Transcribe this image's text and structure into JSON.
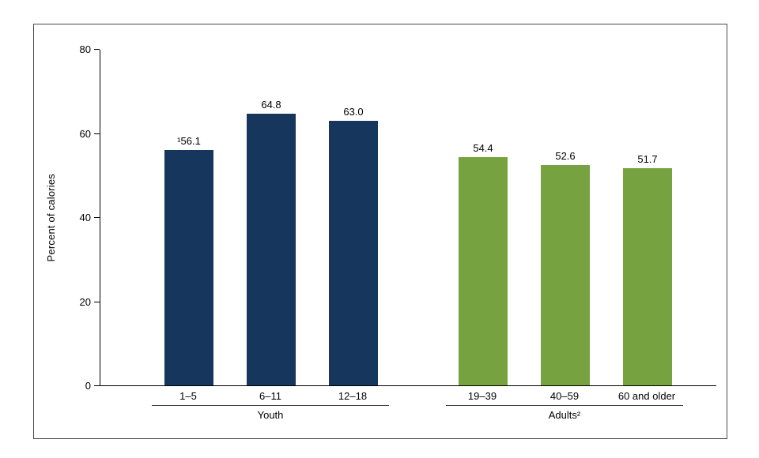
{
  "chart_data": {
    "type": "bar",
    "title": "",
    "xlabel": "",
    "ylabel": "Percent of calories",
    "ylim": [
      0,
      80
    ],
    "yticks": [
      0,
      20,
      40,
      60,
      80
    ],
    "grid": false,
    "legend": false,
    "groups": [
      {
        "label": "Youth",
        "color": "#17365d",
        "bars": [
          {
            "category": "1–5",
            "value": 56.1,
            "value_label": "¹56.1"
          },
          {
            "category": "6–11",
            "value": 64.8,
            "value_label": "64.8"
          },
          {
            "category": "12–18",
            "value": 63.0,
            "value_label": "63.0"
          }
        ]
      },
      {
        "label": "Adults²",
        "color": "#76a23f",
        "bars": [
          {
            "category": "19–39",
            "value": 54.4,
            "value_label": "54.4"
          },
          {
            "category": "40–59",
            "value": 52.6,
            "value_label": "52.6"
          },
          {
            "category": "60 and older",
            "value": 51.7,
            "value_label": "51.7"
          }
        ]
      }
    ]
  },
  "frame": {
    "border_color": "#4a4a4a",
    "background": "#ffffff"
  }
}
